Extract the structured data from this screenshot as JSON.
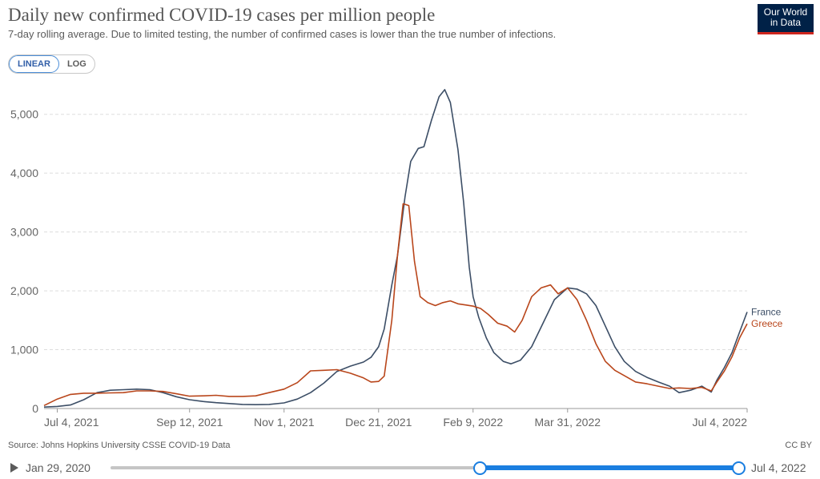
{
  "header": {
    "title": "Daily new confirmed COVID-19 cases per million people",
    "subtitle": "7-day rolling average. Due to limited testing, the number of confirmed cases is lower than the true number of infections."
  },
  "logo": {
    "line1": "Our World",
    "line2": "in Data",
    "bg_color": "#002147",
    "accent_color": "#ce261e"
  },
  "scale_toggle": {
    "linear_label": "LINEAR",
    "log_label": "LOG",
    "selected": "LINEAR"
  },
  "footer": {
    "source": "Source: Johns Hopkins University CSSE COVID-19 Data",
    "license": "CC BY"
  },
  "timeline": {
    "start_label": "Jan 29, 2020",
    "end_label": "Jul 4, 2022",
    "range_start": "Jan 29, 2020",
    "range_end": "Jul 4, 2022"
  },
  "chart_data": {
    "type": "line",
    "title": "Daily new confirmed COVID-19 cases per million people",
    "xlabel": "",
    "ylabel": "",
    "xlim": [
      "2021-06-27",
      "2022-07-04"
    ],
    "ylim": [
      0,
      5500
    ],
    "y_ticks": [
      0,
      1000,
      2000,
      3000,
      4000,
      5000
    ],
    "y_tick_labels": [
      "0",
      "1,000",
      "2,000",
      "3,000",
      "4,000",
      "5,000"
    ],
    "x_ticks": [
      "2021-07-04",
      "2021-09-12",
      "2021-11-01",
      "2021-12-21",
      "2022-02-09",
      "2022-03-31",
      "2022-07-04"
    ],
    "x_tick_labels": [
      "Jul 4, 2021",
      "Sep 12, 2021",
      "Nov 1, 2021",
      "Dec 21, 2021",
      "Feb 9, 2022",
      "Mar 31, 2022",
      "Jul 4, 2022"
    ],
    "grid": "horizontal dashed",
    "legend": "right end labels",
    "series": [
      {
        "name": "France",
        "color": "#3c4e66",
        "points": [
          [
            "2021-06-27",
            25
          ],
          [
            "2021-07-04",
            35
          ],
          [
            "2021-07-11",
            60
          ],
          [
            "2021-07-18",
            150
          ],
          [
            "2021-07-25",
            270
          ],
          [
            "2021-08-01",
            310
          ],
          [
            "2021-08-08",
            320
          ],
          [
            "2021-08-15",
            330
          ],
          [
            "2021-08-22",
            320
          ],
          [
            "2021-08-29",
            270
          ],
          [
            "2021-09-05",
            200
          ],
          [
            "2021-09-12",
            150
          ],
          [
            "2021-09-19",
            120
          ],
          [
            "2021-09-26",
            100
          ],
          [
            "2021-10-03",
            85
          ],
          [
            "2021-10-10",
            70
          ],
          [
            "2021-10-17",
            65
          ],
          [
            "2021-10-24",
            70
          ],
          [
            "2021-11-01",
            95
          ],
          [
            "2021-11-08",
            160
          ],
          [
            "2021-11-15",
            270
          ],
          [
            "2021-11-22",
            430
          ],
          [
            "2021-11-29",
            630
          ],
          [
            "2021-12-06",
            720
          ],
          [
            "2021-12-13",
            790
          ],
          [
            "2021-12-17",
            870
          ],
          [
            "2021-12-21",
            1050
          ],
          [
            "2021-12-24",
            1350
          ],
          [
            "2021-12-28",
            2100
          ],
          [
            "2021-12-31",
            2600
          ],
          [
            "2022-01-04",
            3600
          ],
          [
            "2022-01-07",
            4200
          ],
          [
            "2022-01-11",
            4420
          ],
          [
            "2022-01-14",
            4450
          ],
          [
            "2022-01-18",
            4900
          ],
          [
            "2022-01-22",
            5300
          ],
          [
            "2022-01-25",
            5420
          ],
          [
            "2022-01-28",
            5200
          ],
          [
            "2022-02-01",
            4400
          ],
          [
            "2022-02-04",
            3500
          ],
          [
            "2022-02-07",
            2400
          ],
          [
            "2022-02-09",
            1900
          ],
          [
            "2022-02-12",
            1550
          ],
          [
            "2022-02-16",
            1200
          ],
          [
            "2022-02-20",
            950
          ],
          [
            "2022-02-25",
            800
          ],
          [
            "2022-03-01",
            760
          ],
          [
            "2022-03-06",
            820
          ],
          [
            "2022-03-12",
            1050
          ],
          [
            "2022-03-18",
            1450
          ],
          [
            "2022-03-24",
            1850
          ],
          [
            "2022-03-31",
            2050
          ],
          [
            "2022-04-05",
            2030
          ],
          [
            "2022-04-10",
            1950
          ],
          [
            "2022-04-15",
            1750
          ],
          [
            "2022-04-20",
            1400
          ],
          [
            "2022-04-25",
            1050
          ],
          [
            "2022-04-30",
            800
          ],
          [
            "2022-05-06",
            630
          ],
          [
            "2022-05-12",
            530
          ],
          [
            "2022-05-18",
            450
          ],
          [
            "2022-05-24",
            380
          ],
          [
            "2022-05-29",
            270
          ],
          [
            "2022-06-04",
            310
          ],
          [
            "2022-06-10",
            380
          ],
          [
            "2022-06-15",
            280
          ],
          [
            "2022-06-18",
            480
          ],
          [
            "2022-06-22",
            700
          ],
          [
            "2022-06-26",
            950
          ],
          [
            "2022-06-30",
            1300
          ],
          [
            "2022-07-04",
            1640
          ]
        ]
      },
      {
        "name": "Greece",
        "color": "#b9461b",
        "points": [
          [
            "2021-06-27",
            50
          ],
          [
            "2021-07-04",
            160
          ],
          [
            "2021-07-11",
            240
          ],
          [
            "2021-07-18",
            260
          ],
          [
            "2021-07-25",
            260
          ],
          [
            "2021-08-01",
            265
          ],
          [
            "2021-08-08",
            270
          ],
          [
            "2021-08-15",
            300
          ],
          [
            "2021-08-22",
            300
          ],
          [
            "2021-08-29",
            290
          ],
          [
            "2021-09-05",
            250
          ],
          [
            "2021-09-12",
            210
          ],
          [
            "2021-09-19",
            215
          ],
          [
            "2021-09-26",
            225
          ],
          [
            "2021-10-03",
            205
          ],
          [
            "2021-10-10",
            205
          ],
          [
            "2021-10-17",
            215
          ],
          [
            "2021-10-24",
            270
          ],
          [
            "2021-11-01",
            330
          ],
          [
            "2021-11-08",
            440
          ],
          [
            "2021-11-15",
            640
          ],
          [
            "2021-11-22",
            650
          ],
          [
            "2021-11-29",
            660
          ],
          [
            "2021-12-06",
            600
          ],
          [
            "2021-12-13",
            520
          ],
          [
            "2021-12-17",
            450
          ],
          [
            "2021-12-21",
            460
          ],
          [
            "2021-12-24",
            550
          ],
          [
            "2021-12-28",
            1500
          ],
          [
            "2021-12-31",
            2600
          ],
          [
            "2022-01-03",
            3480
          ],
          [
            "2022-01-06",
            3450
          ],
          [
            "2022-01-09",
            2500
          ],
          [
            "2022-01-12",
            1900
          ],
          [
            "2022-01-16",
            1800
          ],
          [
            "2022-01-20",
            1750
          ],
          [
            "2022-01-24",
            1800
          ],
          [
            "2022-01-28",
            1830
          ],
          [
            "2022-02-01",
            1780
          ],
          [
            "2022-02-05",
            1760
          ],
          [
            "2022-02-09",
            1740
          ],
          [
            "2022-02-13",
            1700
          ],
          [
            "2022-02-17",
            1600
          ],
          [
            "2022-02-22",
            1450
          ],
          [
            "2022-02-27",
            1400
          ],
          [
            "2022-03-03",
            1300
          ],
          [
            "2022-03-07",
            1500
          ],
          [
            "2022-03-12",
            1900
          ],
          [
            "2022-03-17",
            2050
          ],
          [
            "2022-03-22",
            2100
          ],
          [
            "2022-03-26",
            1950
          ],
          [
            "2022-03-31",
            2050
          ],
          [
            "2022-04-05",
            1850
          ],
          [
            "2022-04-10",
            1500
          ],
          [
            "2022-04-15",
            1100
          ],
          [
            "2022-04-20",
            800
          ],
          [
            "2022-04-25",
            650
          ],
          [
            "2022-04-30",
            560
          ],
          [
            "2022-05-06",
            450
          ],
          [
            "2022-05-12",
            420
          ],
          [
            "2022-05-18",
            380
          ],
          [
            "2022-05-24",
            340
          ],
          [
            "2022-05-29",
            350
          ],
          [
            "2022-06-04",
            340
          ],
          [
            "2022-06-10",
            360
          ],
          [
            "2022-06-15",
            300
          ],
          [
            "2022-06-18",
            450
          ],
          [
            "2022-06-22",
            640
          ],
          [
            "2022-06-26",
            880
          ],
          [
            "2022-06-30",
            1200
          ],
          [
            "2022-07-04",
            1440
          ]
        ]
      }
    ]
  }
}
